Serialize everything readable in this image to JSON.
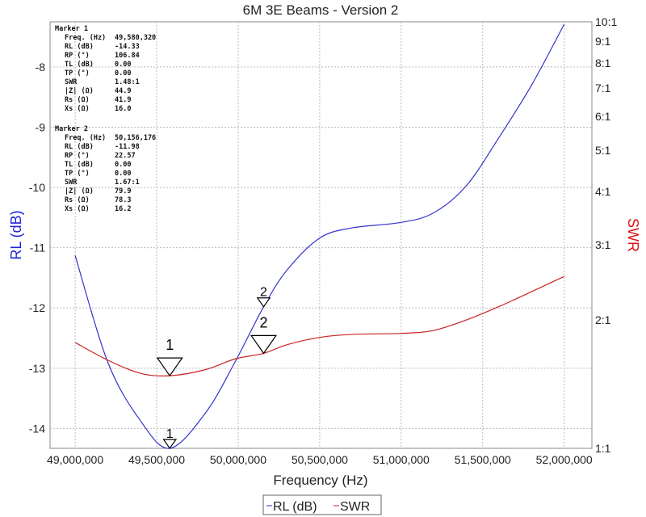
{
  "chart_data": {
    "type": "line",
    "title": "6M 3E Beams - Version 2",
    "xlabel": "Frequency (Hz)",
    "ylabel_left": "RL (dB)",
    "ylabel_right": "SWR",
    "xlim": [
      48846000,
      52170000
    ],
    "ylim_left": [
      -14.33,
      -7.25
    ],
    "ylim_right": [
      1,
      10
    ],
    "right_scale": "log",
    "grid": true,
    "legend_placement": "bottom",
    "x_ticks": [
      49000000,
      49500000,
      50000000,
      50500000,
      51000000,
      51500000,
      52000000
    ],
    "x_tick_labels": [
      "49,000,000",
      "49,500,000",
      "50,000,000",
      "50,500,000",
      "51,000,000",
      "51,500,000",
      "52,000,000"
    ],
    "y_left_ticks": [
      -8,
      -9,
      -10,
      -11,
      -12,
      -13,
      -14
    ],
    "y_left_tick_labels": [
      "-8",
      "-9",
      "-10",
      "-11",
      "-12",
      "-13",
      "-14"
    ],
    "y_right_ticks": [
      1,
      2,
      3,
      4,
      5,
      6,
      7,
      8,
      9,
      10
    ],
    "y_right_tick_labels": [
      "1:1",
      "2:1",
      "3:1",
      "4:1",
      "5:1",
      "6:1",
      "7:1",
      "8:1",
      "9:1",
      "10:1"
    ],
    "x": [
      49000000,
      49200000,
      49400000,
      49580320,
      49800000,
      49980000,
      50156176,
      50300000,
      50500000,
      50700000,
      51000000,
      51200000,
      51400000,
      51600000,
      51800000,
      52000000
    ],
    "series": [
      {
        "name": "RL (dB)",
        "axis": "left",
        "color": "#3333cc",
        "values": [
          -11.13,
          -12.9,
          -13.87,
          -14.33,
          -13.74,
          -12.9,
          -11.98,
          -11.37,
          -10.84,
          -10.67,
          -10.58,
          -10.42,
          -9.97,
          -9.17,
          -8.3,
          -7.29
        ]
      },
      {
        "name": "SWR",
        "axis": "right",
        "color": "#cc2222",
        "values": [
          1.77,
          1.61,
          1.5,
          1.48,
          1.53,
          1.62,
          1.67,
          1.75,
          1.82,
          1.85,
          1.86,
          1.89,
          2.0,
          2.15,
          2.33,
          2.53
        ]
      }
    ],
    "markers": [
      {
        "label": "1",
        "freq": 49580320,
        "rl": -14.33,
        "swr": 1.48
      },
      {
        "label": "2",
        "freq": 50156176,
        "rl": -11.98,
        "swr": 1.67
      }
    ]
  },
  "marker_panel": [
    {
      "title": "Marker 1",
      "rows": [
        [
          "Freq. (Hz)",
          "49,580,320"
        ],
        [
          "RL (dB)",
          "-14.33"
        ],
        [
          "RP (°)",
          "106.84"
        ],
        [
          "TL (dB)",
          "0.00"
        ],
        [
          "TP (°)",
          "0.00"
        ],
        [
          "SWR",
          "1.48:1"
        ],
        [
          "|Z| (Ω)",
          "44.9"
        ],
        [
          "Rs (Ω)",
          "41.9"
        ],
        [
          "Xs (Ω)",
          "16.0"
        ]
      ]
    },
    {
      "title": "Marker 2",
      "rows": [
        [
          "Freq. (Hz)",
          "50,156,176"
        ],
        [
          "RL (dB)",
          "-11.98"
        ],
        [
          "RP (°)",
          "22.57"
        ],
        [
          "TL (dB)",
          "0.00"
        ],
        [
          "TP (°)",
          "0.00"
        ],
        [
          "SWR",
          "1.67:1"
        ],
        [
          "|Z| (Ω)",
          "79.9"
        ],
        [
          "Rs (Ω)",
          "78.3"
        ],
        [
          "Xs (Ω)",
          "16.2"
        ]
      ]
    }
  ]
}
